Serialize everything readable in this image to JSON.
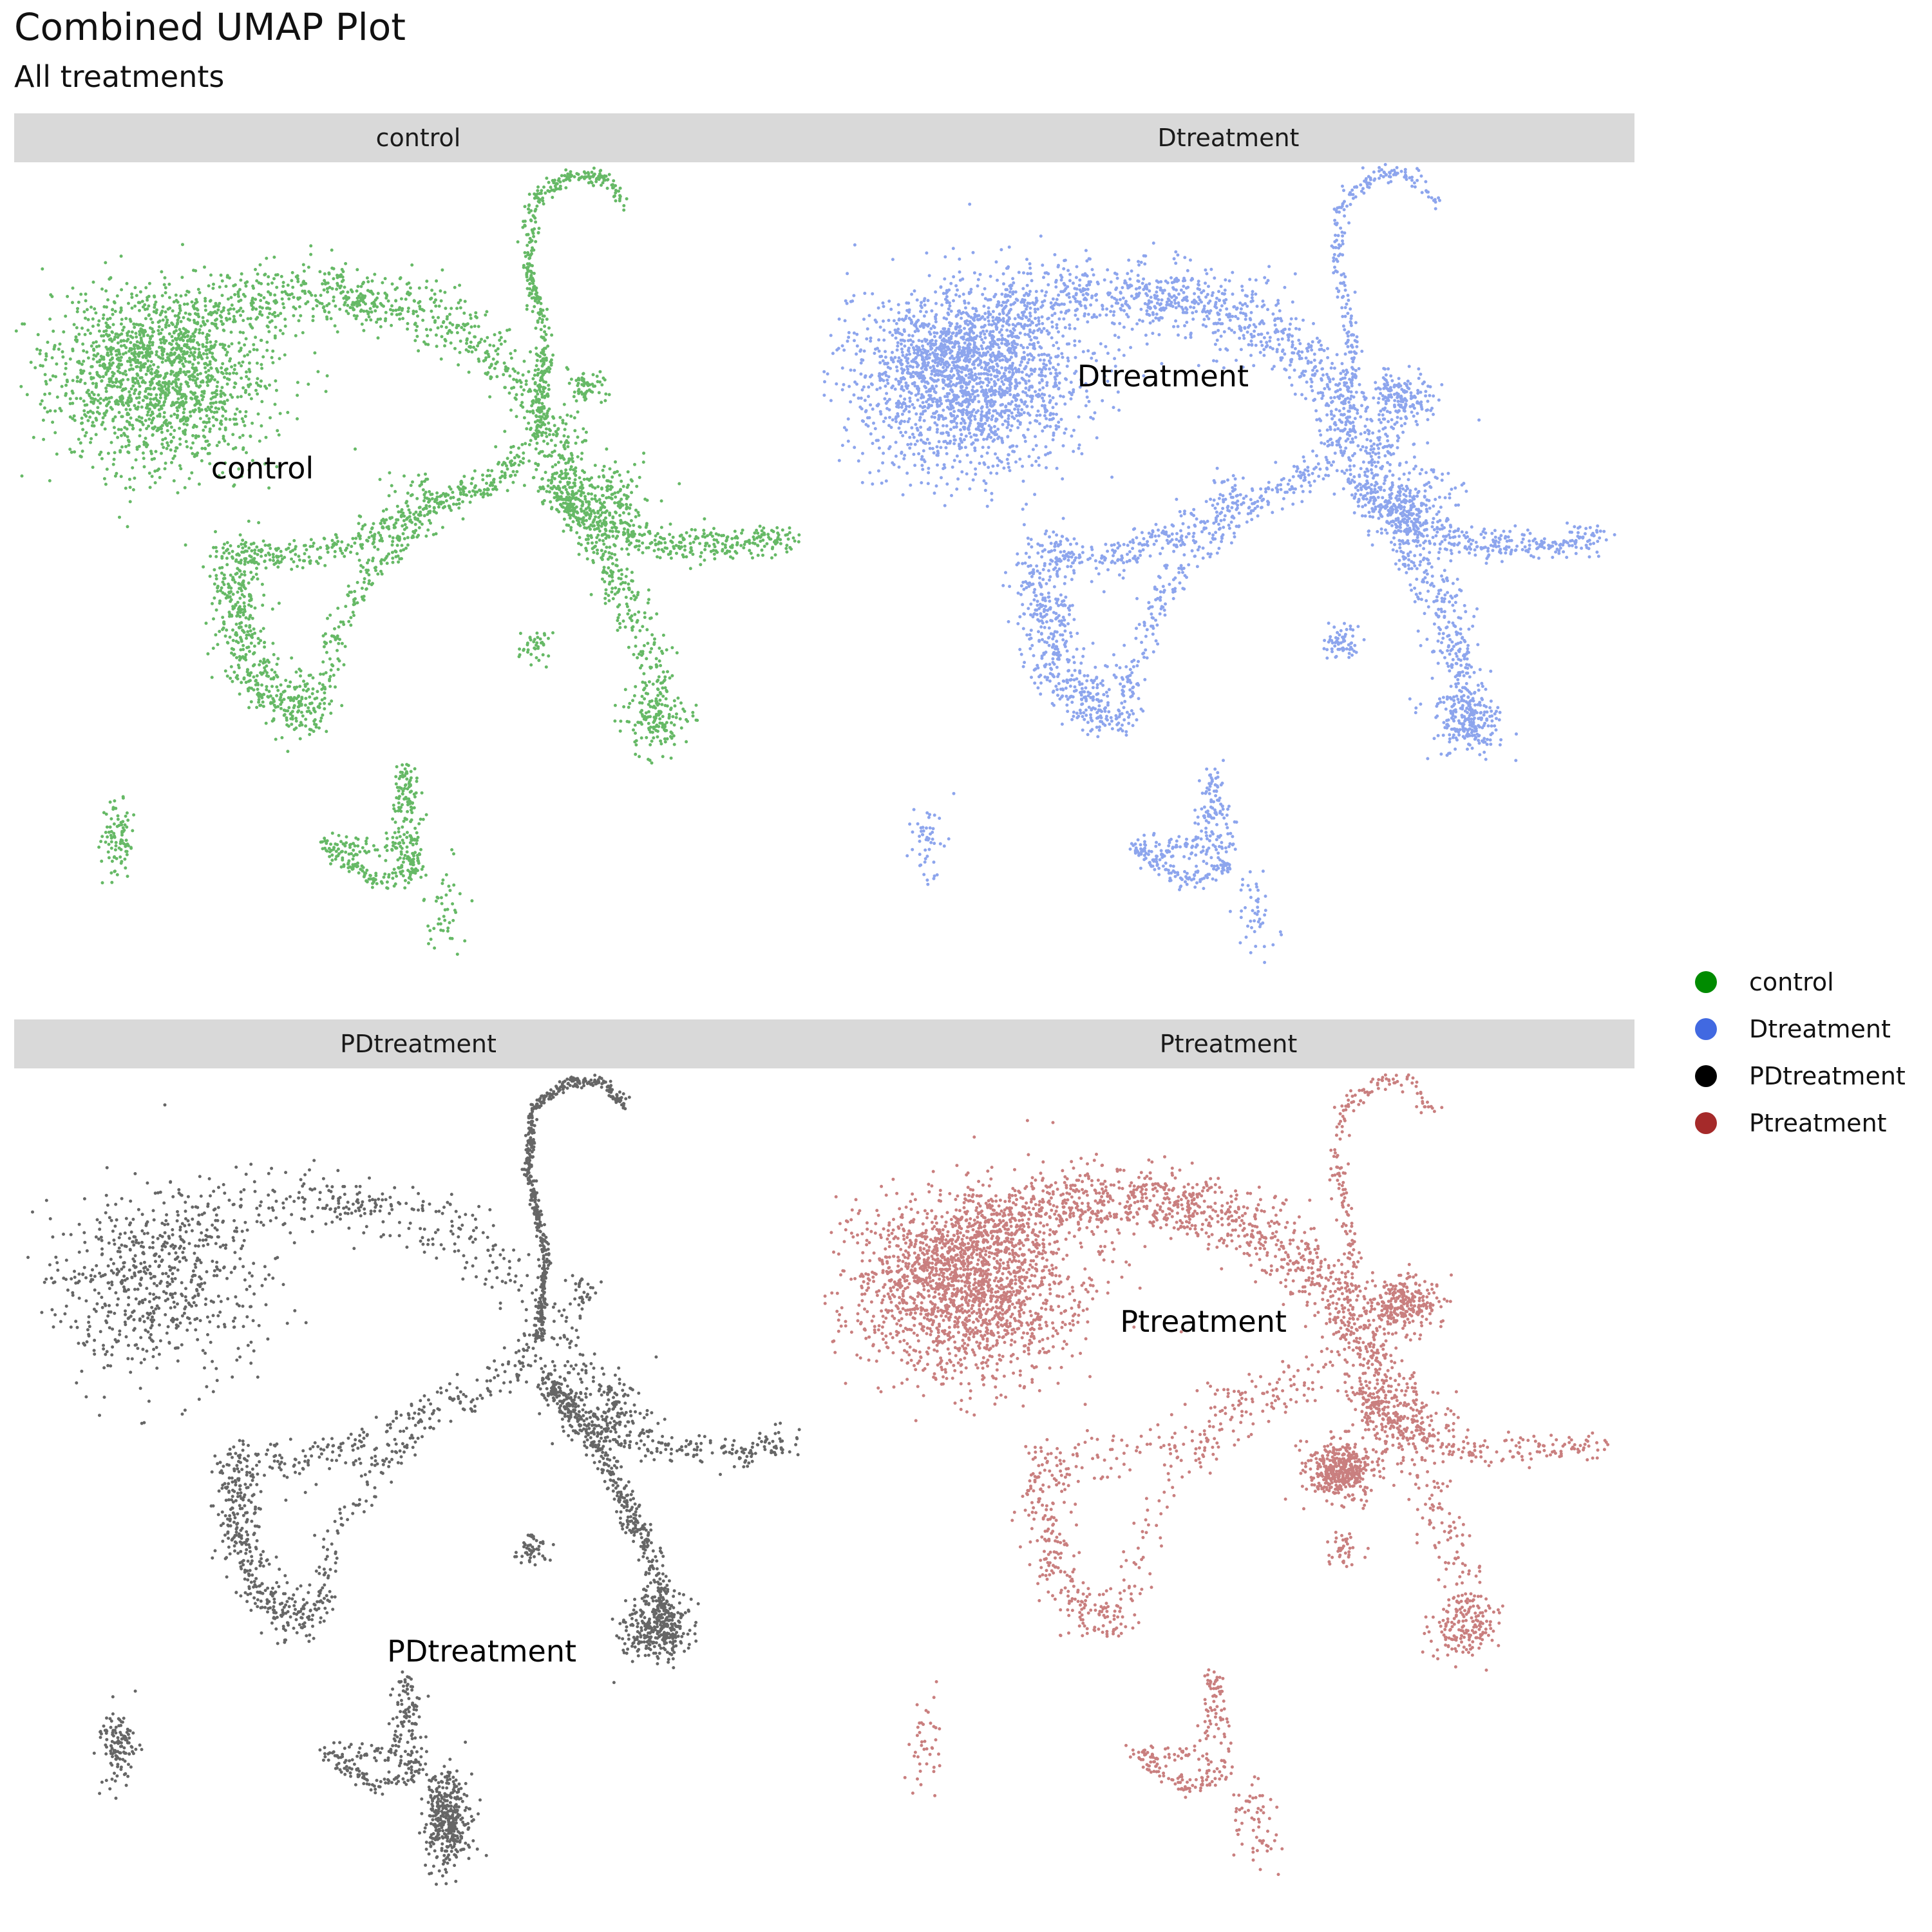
{
  "title": "Combined UMAP Plot",
  "subtitle": "All treatments",
  "legend": {
    "items": [
      {
        "label": "control",
        "color": "#008B00"
      },
      {
        "label": "Dtreatment",
        "color": "#4169E1"
      },
      {
        "label": "PDtreatment",
        "color": "#000000"
      },
      {
        "label": "Ptreatment",
        "color": "#A52A2A"
      }
    ]
  },
  "chart_data": {
    "type": "scatter",
    "facets": [
      "control",
      "Dtreatment",
      "PDtreatment",
      "Ptreatment"
    ],
    "axes_visible": false,
    "grid": false,
    "legend_position": "right",
    "series": [
      {
        "name": "control",
        "color": "#008B00",
        "label": "control",
        "label_pos": [
          -3.2,
          1.2
        ]
      },
      {
        "name": "Dtreatment",
        "color": "#4169E1",
        "label": "Dtreatment",
        "label_pos": [
          -1.6,
          2.6
        ]
      },
      {
        "name": "PDtreatment",
        "color": "#000000",
        "label": "PDtreatment",
        "label_pos": [
          0.6,
          -3.0
        ]
      },
      {
        "name": "Ptreatment",
        "color": "#A52A2A",
        "label": "Ptreatment",
        "label_pos": [
          -0.9,
          2.0
        ]
      }
    ]
  }
}
